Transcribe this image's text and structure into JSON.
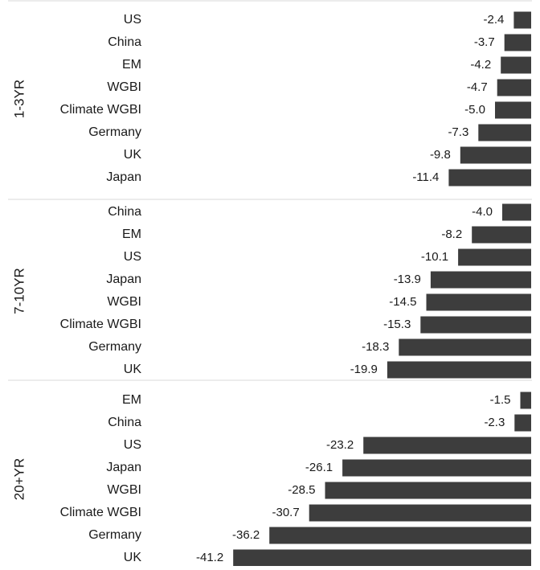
{
  "chart_data": {
    "type": "bar",
    "orientation": "horizontal",
    "title": "",
    "xlabel": "",
    "ylabel": "",
    "xlim": [
      -42,
      0
    ],
    "grid": false,
    "legend": "none",
    "bar_color": "#3d3d3d",
    "panels": [
      {
        "name": "1-3YR",
        "categories": [
          "US",
          "China",
          "EM",
          "WGBI",
          "Climate WGBI",
          "Germany",
          "UK",
          "Japan"
        ],
        "values": [
          -2.4,
          -3.7,
          -4.2,
          -4.7,
          -5.0,
          -7.3,
          -9.8,
          -11.4
        ],
        "value_labels": [
          "-2.4",
          "-3.7",
          "-4.2",
          "-4.7",
          "-5.0",
          "-7.3",
          "-9.8",
          "-11.4"
        ]
      },
      {
        "name": "7-10YR",
        "categories": [
          "China",
          "EM",
          "US",
          "Japan",
          "WGBI",
          "Climate WGBI",
          "Germany",
          "UK"
        ],
        "values": [
          -4.0,
          -8.2,
          -10.1,
          -13.9,
          -14.5,
          -15.3,
          -18.3,
          -19.9
        ],
        "value_labels": [
          "-4.0",
          "-8.2",
          "-10.1",
          "-13.9",
          "-14.5",
          "-15.3",
          "-18.3",
          "-19.9"
        ]
      },
      {
        "name": "20+YR",
        "categories": [
          "EM",
          "China",
          "US",
          "Japan",
          "WGBI",
          "Climate WGBI",
          "Germany",
          "UK"
        ],
        "values": [
          -1.5,
          -2.3,
          -23.2,
          -26.1,
          -28.5,
          -30.7,
          -36.2,
          -41.2
        ],
        "value_labels": [
          "-1.5",
          "-2.3",
          "-23.2",
          "-26.1",
          "-28.5",
          "-30.7",
          "-36.2",
          "-41.2"
        ]
      }
    ]
  }
}
